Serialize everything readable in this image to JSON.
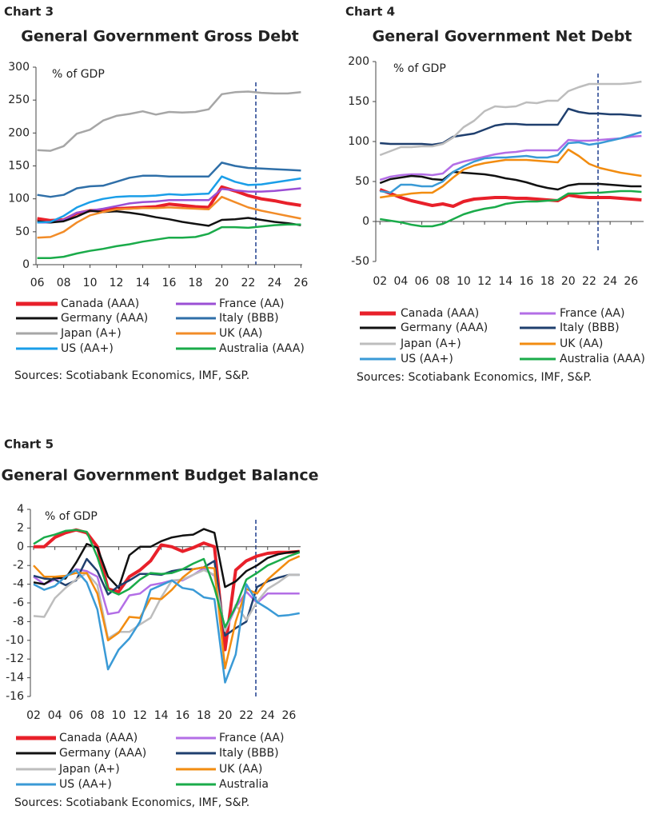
{
  "chart_data": [
    {
      "type": "line",
      "label": "Chart 3",
      "title": "General Government Gross Debt",
      "y_label": "% of GDP",
      "source": "Sources: Scotiabank Economics, IMF, S&P.",
      "x": [
        6,
        7,
        8,
        9,
        10,
        11,
        12,
        13,
        14,
        15,
        16,
        17,
        18,
        19,
        20,
        21,
        22,
        23,
        24,
        25,
        26
      ],
      "xlim": [
        5.9,
        26.1
      ],
      "xticks": [
        {
          "value": 6,
          "label": "06"
        },
        {
          "value": 8,
          "label": "08"
        },
        10,
        12,
        14,
        16,
        18,
        20,
        22,
        24,
        26
      ],
      "ylim": [
        0,
        300
      ],
      "yticks": [
        0,
        50,
        100,
        150,
        200,
        250,
        300
      ],
      "series": [
        {
          "name": "Canada (AAA)",
          "color": "#e8202a",
          "values": [
            70,
            67,
            68,
            78,
            82,
            83,
            85,
            86,
            87,
            88,
            92,
            90,
            88,
            87,
            118,
            112,
            105,
            100,
            97,
            93,
            90
          ]
        },
        {
          "name": "France (AA)",
          "color": "#9b4fd4",
          "values": [
            64,
            64,
            68,
            79,
            82,
            85,
            89,
            93,
            95,
            96,
            98,
            98,
            98,
            98,
            115,
            113,
            111,
            111,
            112,
            114,
            116
          ]
        },
        {
          "name": "Germany (AAA)",
          "color": "#111111",
          "values": [
            66,
            64,
            66,
            73,
            82,
            80,
            81,
            79,
            76,
            72,
            69,
            65,
            62,
            59,
            68,
            69,
            71,
            68,
            65,
            63,
            60
          ]
        },
        {
          "name": "Italy (BBB)",
          "color": "#2f6fa8",
          "values": [
            106,
            103,
            106,
            116,
            119,
            120,
            126,
            132,
            135,
            135,
            134,
            134,
            134,
            134,
            155,
            150,
            147,
            146,
            145,
            144,
            143
          ]
        },
        {
          "name": "Japan (A+)",
          "color": "#a6a6a6",
          "values": [
            174,
            173,
            180,
            199,
            205,
            219,
            226,
            229,
            233,
            228,
            232,
            231,
            232,
            236,
            259,
            262,
            263,
            261,
            260,
            260,
            262
          ]
        },
        {
          "name": "UK (AA)",
          "color": "#f28c28",
          "values": [
            41,
            42,
            50,
            64,
            75,
            80,
            84,
            85,
            86,
            86,
            87,
            86,
            85,
            84,
            103,
            95,
            87,
            82,
            78,
            74,
            70
          ]
        },
        {
          "name": "US (AA+)",
          "color": "#1a9ee8",
          "values": [
            64,
            65,
            74,
            87,
            95,
            100,
            103,
            104,
            104,
            105,
            107,
            106,
            107,
            108,
            134,
            126,
            121,
            122,
            125,
            128,
            131
          ]
        },
        {
          "name": "Australia (AAA)",
          "color": "#1aab4a",
          "values": [
            10,
            10,
            12,
            17,
            21,
            24,
            28,
            31,
            35,
            38,
            41,
            41,
            42,
            47,
            57,
            57,
            56,
            58,
            60,
            61,
            61
          ]
        }
      ]
    },
    {
      "type": "line",
      "label": "Chart 4",
      "title": "General Government Net Debt",
      "y_label": "% of GDP",
      "source": "Sources: Scotiabank Economics, IMF, S&P.",
      "x": [
        2,
        3,
        4,
        5,
        6,
        7,
        8,
        9,
        10,
        11,
        12,
        13,
        14,
        15,
        16,
        17,
        18,
        19,
        20,
        21,
        22,
        23,
        24,
        25,
        26,
        27
      ],
      "xlim": [
        1.6,
        27.2
      ],
      "xticks": [
        {
          "value": 2,
          "label": "02"
        },
        {
          "value": 4,
          "label": "04"
        },
        {
          "value": 6,
          "label": "06"
        },
        {
          "value": 8,
          "label": "08"
        },
        10,
        12,
        14,
        16,
        18,
        20,
        22,
        24,
        26
      ],
      "ylim": [
        -50,
        200
      ],
      "yticks": [
        -50,
        0,
        50,
        100,
        150,
        200
      ],
      "series": [
        {
          "name": "Canada (AAA)",
          "color": "#e8202a",
          "values": [
            40,
            35,
            30,
            26,
            23,
            20,
            22,
            19,
            25,
            28,
            29,
            30,
            30,
            29,
            29,
            28,
            27,
            26,
            33,
            31,
            30,
            30,
            30,
            29,
            28,
            27
          ]
        },
        {
          "name": "France (AA)",
          "color": "#b36ee6",
          "values": [
            52,
            56,
            58,
            59,
            59,
            58,
            60,
            71,
            75,
            78,
            81,
            84,
            86,
            87,
            89,
            89,
            89,
            89,
            102,
            101,
            101,
            102,
            103,
            104,
            106,
            107
          ]
        },
        {
          "name": "Germany (AAA)",
          "color": "#111111",
          "values": [
            48,
            53,
            55,
            57,
            56,
            53,
            52,
            62,
            61,
            60,
            59,
            57,
            54,
            52,
            49,
            45,
            42,
            40,
            45,
            47,
            47,
            47,
            46,
            45,
            44,
            44
          ]
        },
        {
          "name": "Italy (BBB)",
          "color": "#1f3f6e",
          "values": [
            98,
            97,
            97,
            97,
            97,
            96,
            98,
            106,
            108,
            110,
            115,
            120,
            122,
            122,
            121,
            121,
            121,
            121,
            141,
            137,
            135,
            135,
            134,
            134,
            133,
            132
          ]
        },
        {
          "name": "Japan (A+)",
          "color": "#bdbdbd",
          "values": [
            83,
            88,
            93,
            93,
            94,
            94,
            97,
            105,
            118,
            126,
            138,
            144,
            143,
            144,
            149,
            148,
            151,
            151,
            163,
            168,
            172,
            172,
            172,
            172,
            173,
            175
          ]
        },
        {
          "name": "UK (AA)",
          "color": "#f28c10",
          "values": [
            30,
            32,
            33,
            35,
            36,
            36,
            44,
            55,
            65,
            70,
            73,
            75,
            77,
            77,
            77,
            76,
            75,
            74,
            90,
            82,
            72,
            67,
            64,
            61,
            59,
            57
          ]
        },
        {
          "name": "US (AA+)",
          "color": "#3a9ad6",
          "values": [
            38,
            36,
            46,
            46,
            44,
            44,
            50,
            62,
            69,
            75,
            79,
            80,
            80,
            81,
            82,
            80,
            80,
            83,
            98,
            99,
            96,
            98,
            101,
            104,
            108,
            112
          ]
        },
        {
          "name": "Australia (AAA)",
          "color": "#1aab4a",
          "values": [
            3,
            1,
            -1,
            -4,
            -6,
            -6,
            -3,
            3,
            9,
            13,
            16,
            18,
            22,
            24,
            25,
            25,
            26,
            27,
            35,
            35,
            36,
            36,
            37,
            38,
            38,
            37
          ]
        }
      ]
    },
    {
      "type": "line",
      "label": "Chart 5",
      "title": "General Government Budget Balance",
      "y_label": "% of GDP",
      "source": "Sources: Scotiabank Economics, IMF, S&P.",
      "x": [
        2,
        3,
        4,
        5,
        6,
        7,
        8,
        9,
        10,
        11,
        12,
        13,
        14,
        15,
        16,
        17,
        18,
        19,
        20,
        21,
        22,
        23,
        24,
        25,
        26,
        27
      ],
      "xlim": [
        1.7,
        27.1
      ],
      "xticks": [
        {
          "value": 2,
          "label": "02"
        },
        {
          "value": 4,
          "label": "04"
        },
        {
          "value": 6,
          "label": "06"
        },
        {
          "value": 8,
          "label": "08"
        },
        10,
        12,
        14,
        16,
        18,
        20,
        22,
        24,
        26
      ],
      "ylim": [
        -16,
        4
      ],
      "yticks": [
        -16,
        -14,
        -12,
        -10,
        -8,
        -6,
        -4,
        -2,
        0,
        2,
        4
      ],
      "series": [
        {
          "name": "Canada (AAA)",
          "color": "#e8202a",
          "values": [
            0,
            0,
            1,
            1.5,
            1.8,
            1.5,
            0,
            -4.5,
            -4.8,
            -3.2,
            -2.5,
            -1.5,
            0.2,
            0,
            -0.5,
            -0.1,
            0.4,
            0,
            -11,
            -2.5,
            -1.5,
            -1,
            -0.7,
            -0.6,
            -0.6,
            -0.5
          ]
        },
        {
          "name": "France (AA)",
          "color": "#b36ee6",
          "values": [
            -3.2,
            -4,
            -3.5,
            -3.2,
            -2.4,
            -2.6,
            -3.2,
            -7.2,
            -7,
            -5.2,
            -5,
            -4.1,
            -3.9,
            -3.6,
            -3.6,
            -3,
            -2.3,
            -3.1,
            -9,
            -6.5,
            -4.8,
            -6,
            -5,
            -5,
            -5,
            -5
          ]
        },
        {
          "name": "Germany (AAA)",
          "color": "#111111",
          "values": [
            -3.8,
            -4,
            -3.3,
            -3.4,
            -1.7,
            0.3,
            -0.1,
            -3.2,
            -4.4,
            -0.9,
            0,
            0,
            0.6,
            1,
            1.2,
            1.3,
            1.9,
            1.5,
            -4.3,
            -3.7,
            -2.6,
            -2,
            -1.2,
            -0.8,
            -0.6,
            -0.5
          ]
        },
        {
          "name": "Italy (BBB)",
          "color": "#1f3f6e",
          "values": [
            -3.1,
            -3.4,
            -3.5,
            -4.1,
            -3.6,
            -1.3,
            -2.6,
            -5.1,
            -4.2,
            -3.6,
            -2.9,
            -2.9,
            -3,
            -2.6,
            -2.4,
            -2.4,
            -2.2,
            -1.5,
            -9.5,
            -8.7,
            -8,
            -4.3,
            -3.7,
            -3.3,
            -3,
            -3
          ]
        },
        {
          "name": "Japan (A+)",
          "color": "#bdbdbd",
          "values": [
            -7.4,
            -7.5,
            -5.5,
            -4.4,
            -3.5,
            -2.8,
            -4.1,
            -9.8,
            -9.1,
            -9.1,
            -8.3,
            -7.6,
            -5.4,
            -3.6,
            -3.5,
            -3,
            -2.5,
            -3,
            -9,
            -6.2,
            -7.8,
            -5.9,
            -4.5,
            -3.8,
            -3,
            -3
          ]
        },
        {
          "name": "UK (AA)",
          "color": "#f28c10",
          "values": [
            -2,
            -3.2,
            -3.2,
            -3.1,
            -2.8,
            -2.8,
            -5,
            -10,
            -9.2,
            -7.5,
            -7.6,
            -5.5,
            -5.6,
            -4.6,
            -3.3,
            -2.4,
            -2.2,
            -2.3,
            -13,
            -8,
            -4.5,
            -5,
            -3.5,
            -2.5,
            -1.5,
            -1
          ]
        },
        {
          "name": "US (AA+)",
          "color": "#3a9ad6",
          "values": [
            -4,
            -4.6,
            -4.2,
            -3.2,
            -2.5,
            -3.8,
            -6.7,
            -13.1,
            -11,
            -9.8,
            -8,
            -4.6,
            -4.1,
            -3.6,
            -4.4,
            -4.6,
            -5.4,
            -5.6,
            -14.5,
            -11.5,
            -4,
            -5.9,
            -6.6,
            -7.4,
            -7.3,
            -7.1
          ]
        },
        {
          "name": "Australia",
          "color": "#1aab4a",
          "values": [
            0.3,
            1,
            1.3,
            1.7,
            1.8,
            1.6,
            -1.1,
            -4.6,
            -5.1,
            -4.5,
            -3.5,
            -2.8,
            -2.9,
            -2.8,
            -2.4,
            -1.8,
            -1.3,
            -4.4,
            -8.6,
            -6.4,
            -3.5,
            -2.8,
            -2,
            -1.5,
            -1,
            -0.6
          ]
        }
      ]
    }
  ]
}
